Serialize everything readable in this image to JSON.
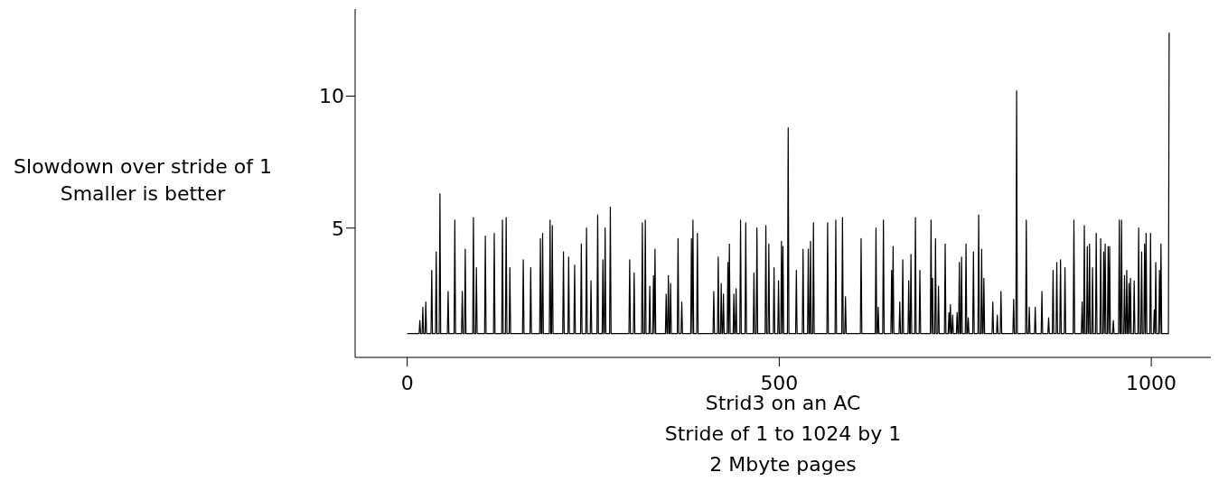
{
  "chart_data": {
    "type": "line",
    "xlabel": "Strid3 on an AC\nStride of 1 to 1024 by 1\n2 Mbyte pages",
    "ylabel": "Slowdown over stride of 1\nSmaller is better",
    "x": [
      0,
      16,
      17,
      18,
      20,
      21,
      22,
      24,
      25,
      26,
      32,
      33,
      34,
      38,
      39,
      40,
      43,
      44,
      45,
      54,
      55,
      56,
      63,
      64,
      65,
      73,
      74,
      75,
      77,
      78,
      79,
      88,
      89,
      90,
      92,
      93,
      94,
      104,
      105,
      106,
      116,
      117,
      118,
      127,
      128,
      129,
      132,
      133,
      134,
      137,
      138,
      139,
      155,
      156,
      157,
      165,
      166,
      167,
      178,
      179,
      180,
      181,
      182,
      183,
      191,
      192,
      193,
      194,
      195,
      196,
      209,
      210,
      211,
      216,
      217,
      218,
      224,
      225,
      226,
      233,
      234,
      235,
      240,
      241,
      242,
      246,
      247,
      248,
      255,
      256,
      257,
      262,
      263,
      264,
      265,
      266,
      267,
      272,
      273,
      274,
      298,
      299,
      300,
      304,
      305,
      306,
      315,
      316,
      317,
      319,
      320,
      321,
      325,
      326,
      327,
      330,
      331,
      332,
      333,
      334,
      347,
      348,
      349,
      350,
      351,
      352,
      353,
      354,
      355,
      363,
      364,
      365,
      368,
      369,
      370,
      381,
      382,
      383,
      384,
      385,
      389,
      390,
      391,
      411,
      412,
      413,
      417,
      418,
      419,
      421,
      422,
      423,
      424,
      425,
      426,
      430,
      431,
      432,
      433,
      434,
      438,
      439,
      440,
      441,
      442,
      443,
      447,
      448,
      449,
      454,
      455,
      456,
      465,
      466,
      467,
      469,
      470,
      471,
      481,
      482,
      483,
      485,
      486,
      487,
      492,
      493,
      494,
      498,
      499,
      500,
      502,
      503,
      504,
      505,
      506,
      511,
      512,
      513,
      522,
      523,
      524,
      531,
      532,
      533,
      538,
      539,
      540,
      541,
      542,
      543,
      545,
      546,
      547,
      564,
      565,
      566,
      575,
      576,
      577,
      584,
      585,
      586,
      588,
      589,
      590,
      609,
      610,
      611,
      629,
      630,
      631,
      632,
      633,
      634,
      639,
      640,
      641,
      650,
      651,
      652,
      653,
      654,
      661,
      662,
      663,
      665,
      666,
      667,
      673,
      674,
      675,
      676,
      677,
      678,
      682,
      683,
      684,
      688,
      689,
      690,
      703,
      704,
      705,
      706,
      707,
      709,
      710,
      711,
      713,
      714,
      715,
      722,
      723,
      724,
      727,
      728,
      729,
      730,
      731,
      732,
      733,
      734,
      738,
      739,
      740,
      741,
      742,
      743,
      744,
      745,
      746,
      750,
      751,
      752,
      753,
      754,
      755,
      760,
      761,
      762,
      767,
      768,
      769,
      771,
      772,
      773,
      774,
      775,
      776,
      786,
      787,
      788,
      792,
      793,
      794,
      797,
      798,
      799,
      814,
      815,
      816,
      818,
      819,
      820,
      831,
      832,
      833,
      835,
      836,
      837,
      843,
      844,
      845,
      852,
      853,
      854,
      861,
      862,
      863,
      867,
      868,
      869,
      872,
      873,
      874,
      877,
      878,
      879,
      883,
      884,
      885,
      895,
      896,
      897,
      906,
      907,
      908,
      909,
      910,
      911,
      913,
      914,
      915,
      916,
      917,
      918,
      920,
      921,
      922,
      925,
      926,
      927,
      931,
      932,
      933,
      935,
      936,
      937,
      938,
      939,
      941,
      942,
      943,
      944,
      945,
      948,
      949,
      950,
      956,
      957,
      958,
      959,
      960,
      961,
      963,
      964,
      965,
      966,
      967,
      968,
      969,
      970,
      971,
      972,
      973,
      976,
      977,
      978,
      982,
      983,
      984,
      986,
      987,
      988,
      990,
      991,
      992,
      993,
      994,
      998,
      999,
      1000,
      1003,
      1004,
      1005,
      1006,
      1007,
      1010,
      1011,
      1012,
      1013,
      1014,
      1023,
      1024
    ],
    "series": [
      {
        "color": "#000000",
        "values": [
          1,
          1,
          1.5,
          1,
          1,
          2.0,
          1,
          1,
          2.2,
          1,
          1,
          3.4,
          1,
          1,
          4.1,
          1,
          1,
          6.3,
          1,
          1,
          2.6,
          1,
          1,
          5.3,
          1,
          1,
          2.6,
          1,
          1,
          4.2,
          1,
          1,
          5.4,
          1,
          1,
          3.5,
          1,
          1,
          4.7,
          1,
          1,
          4.8,
          1,
          1,
          5.3,
          1,
          1,
          5.4,
          1,
          1,
          3.5,
          1,
          1,
          3.8,
          1,
          1,
          3.5,
          1,
          1,
          4.6,
          1,
          1,
          4.8,
          1,
          1,
          5.3,
          1,
          1,
          5.1,
          1,
          1,
          4.1,
          1,
          1,
          3.9,
          1,
          1,
          3.6,
          1,
          1,
          4.4,
          1,
          1,
          5.0,
          1,
          1,
          3.0,
          1,
          1,
          5.5,
          1,
          1,
          3.8,
          1,
          1,
          5.0,
          1,
          1,
          5.8,
          1,
          1,
          3.8,
          1,
          1,
          3.3,
          1,
          1,
          5.2,
          1,
          1,
          5.3,
          1,
          1,
          2.8,
          1,
          1,
          3.2,
          1,
          4.2,
          1,
          1,
          2.5,
          1,
          1,
          3.2,
          1,
          1,
          2.9,
          1,
          1,
          4.6,
          1,
          1,
          2.2,
          1,
          1,
          4.6,
          1,
          5.3,
          1,
          1,
          4.8,
          1,
          1,
          2.6,
          1,
          1,
          3.9,
          1,
          1,
          2.9,
          1,
          1,
          2.5,
          1,
          1,
          3.7,
          1,
          4.4,
          1,
          1,
          2.5,
          1,
          1,
          2.7,
          1,
          1,
          5.3,
          1,
          1,
          5.2,
          1,
          1,
          3.3,
          1,
          1,
          5.0,
          1,
          1,
          5.1,
          1,
          1,
          4.4,
          1,
          1,
          3.5,
          1,
          1,
          3.0,
          1,
          1,
          4.5,
          1,
          4.3,
          1,
          1,
          8.8,
          1,
          1,
          3.4,
          1,
          1,
          4.2,
          1,
          1,
          4.2,
          1,
          1,
          4.5,
          1,
          1,
          5.2,
          1,
          1,
          5.2,
          1,
          1,
          5.3,
          1,
          1,
          5.4,
          1,
          1,
          2.4,
          1,
          1,
          4.6,
          1,
          1,
          5.0,
          1,
          1,
          2.0,
          1,
          1,
          5.3,
          1,
          1,
          3.4,
          1,
          4.3,
          1,
          1,
          2.2,
          1,
          1,
          3.8,
          1,
          1,
          3.0,
          1,
          1,
          4.0,
          1,
          1,
          5.4,
          1,
          1,
          3.4,
          1,
          1,
          5.3,
          1,
          3.1,
          1,
          1,
          4.6,
          1,
          1,
          2.8,
          1,
          1,
          4.4,
          1,
          1,
          1.8,
          1,
          2.1,
          1,
          1,
          1.7,
          1,
          1,
          1.8,
          1,
          1,
          3.7,
          1,
          1,
          3.9,
          1,
          1,
          4.4,
          1,
          1,
          1.6,
          1,
          1,
          4.1,
          1,
          1,
          5.5,
          1,
          1,
          4.2,
          1,
          1,
          3.1,
          1,
          1,
          2.2,
          1,
          1,
          1.7,
          1,
          1,
          2.6,
          1,
          1,
          2.3,
          1,
          1,
          10.2,
          1,
          1,
          5.3,
          1,
          1,
          2.0,
          1,
          1,
          2.0,
          1,
          1,
          2.6,
          1,
          1,
          1.6,
          1,
          1,
          3.4,
          1,
          1,
          3.7,
          1,
          1,
          3.8,
          1,
          1,
          3.5,
          1,
          1,
          5.3,
          1,
          1,
          2.2,
          1,
          1,
          5.1,
          1,
          1,
          4.3,
          1,
          1,
          4.4,
          1,
          1,
          3.5,
          1,
          1,
          4.8,
          1,
          1,
          4.6,
          1,
          1,
          4.1,
          1,
          4.4,
          1,
          1,
          4.3,
          1,
          4.3,
          1,
          1,
          1.5,
          1,
          1,
          5.3,
          1,
          1,
          5.3,
          1,
          1,
          3.2,
          1,
          1,
          3.4,
          1,
          1,
          2.9,
          1,
          3.1,
          1,
          1,
          3.0,
          1,
          1,
          5.0,
          1,
          1,
          4.1,
          1,
          1,
          4.4,
          1,
          4.8,
          1,
          1,
          4.8,
          1,
          1,
          1.9,
          1,
          3.7,
          1,
          1,
          3.4,
          1,
          4.4,
          1,
          1,
          12.4
        ]
      }
    ],
    "xlim": [
      -70,
      1080
    ],
    "xticks": [
      0,
      500,
      1000
    ],
    "ylim": [
      0.1,
      13.3
    ],
    "yticks": [
      5,
      10
    ],
    "grid": false,
    "legend": false,
    "marker": "none",
    "line_style": "solid"
  }
}
